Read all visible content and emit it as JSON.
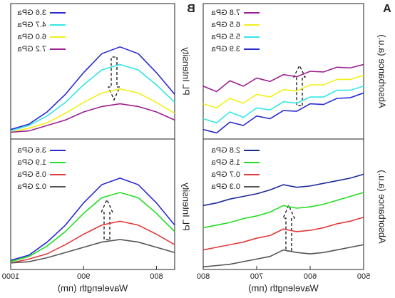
{
  "chart_data": [
    {
      "type": "line",
      "panel_label": "A",
      "ylabel": "Absorbance (a.u.)",
      "xlim": [
        500,
        800
      ],
      "ylim": [
        0,
        10
      ],
      "x": [
        500,
        525,
        550,
        575,
        600,
        625,
        650,
        675,
        700,
        725,
        750,
        775,
        800
      ],
      "series": [
        {
          "name": "7.8 GPa",
          "color": "#9b1f8f",
          "values": [
            5.5,
            5.25,
            5.3,
            4.95,
            5.0,
            4.6,
            4.75,
            4.25,
            4.5,
            3.9,
            4.3,
            3.5,
            3.9
          ]
        },
        {
          "name": "6.5 GPa",
          "color": "#f2ef1a",
          "values": [
            4.7,
            4.4,
            4.4,
            4.0,
            4.0,
            3.55,
            3.65,
            3.1,
            3.3,
            2.65,
            3.0,
            2.3,
            2.6
          ]
        },
        {
          "name": "5.5 GPa",
          "color": "#35e6e6",
          "values": [
            3.9,
            3.6,
            3.6,
            3.1,
            3.1,
            2.65,
            2.75,
            2.15,
            2.3,
            1.6,
            2.0,
            1.2,
            1.5
          ]
        },
        {
          "name": "3.9 GPa",
          "color": "#2a2ad0",
          "values": [
            3.4,
            3.05,
            3.0,
            2.55,
            2.6,
            2.05,
            2.1,
            1.5,
            1.7,
            1.0,
            1.25,
            0.45,
            0.7
          ]
        }
      ]
    },
    {
      "type": "line",
      "ylabel": "Absorbance (a.u.)",
      "xlabel": "Wavelength (nm)",
      "xlim": [
        500,
        800
      ],
      "ylim": [
        0,
        10
      ],
      "xticks": [
        500,
        600,
        700,
        800
      ],
      "x": [
        500,
        525,
        550,
        575,
        600,
        625,
        650,
        675,
        700,
        725,
        750,
        775,
        800
      ],
      "series": [
        {
          "name": "2.8 GPa",
          "color": "#1a2a9a",
          "values": [
            7.3,
            7.0,
            6.8,
            6.6,
            6.4,
            6.3,
            6.5,
            6.1,
            5.8,
            5.6,
            5.4,
            5.1,
            4.9
          ]
        },
        {
          "name": "1.5 GPa",
          "color": "#22dd22",
          "values": [
            5.9,
            5.6,
            5.3,
            5.0,
            4.8,
            4.7,
            4.9,
            4.4,
            4.1,
            3.9,
            3.6,
            3.4,
            3.2
          ]
        },
        {
          "name": "0.7 GPa",
          "color": "#e23a3a",
          "values": [
            4.0,
            3.7,
            3.5,
            3.2,
            3.0,
            2.9,
            3.1,
            2.6,
            2.4,
            2.1,
            1.9,
            1.7,
            1.5
          ]
        },
        {
          "name": "0.3 GPa",
          "color": "#555555",
          "values": [
            1.9,
            1.7,
            1.5,
            1.3,
            1.2,
            1.3,
            1.5,
            1.0,
            0.8,
            0.6,
            0.4,
            0.3,
            0.2
          ]
        }
      ]
    },
    {
      "type": "line",
      "panel_label": "B",
      "ylabel": "PL Intensity",
      "xlim": [
        775,
        1000
      ],
      "ylim": [
        0,
        10
      ],
      "x": [
        775,
        800,
        825,
        850,
        875,
        900,
        925,
        950,
        975,
        1000
      ],
      "series": [
        {
          "name": "3.6 GPa",
          "color": "#2a2ad0",
          "values": [
            3.3,
            4.9,
            6.3,
            6.8,
            6.3,
            4.9,
            3.3,
            2.0,
            1.1,
            0.7
          ]
        },
        {
          "name": "4.7 GPa",
          "color": "#35e6e6",
          "values": [
            2.7,
            4.0,
            5.1,
            5.5,
            5.1,
            4.0,
            2.7,
            1.7,
            1.0,
            0.6
          ]
        },
        {
          "name": "6.0 GPa",
          "color": "#f2ef1a",
          "values": [
            1.9,
            2.7,
            3.4,
            3.7,
            3.4,
            2.7,
            1.9,
            1.2,
            0.8,
            0.5
          ]
        },
        {
          "name": "7.2 GPa",
          "color": "#9b1f8f",
          "values": [
            1.4,
            2.0,
            2.4,
            2.6,
            2.4,
            2.0,
            1.4,
            1.0,
            0.6,
            0.5
          ]
        }
      ]
    },
    {
      "type": "line",
      "ylabel": "PL Intensity",
      "xlabel": "Wavelength (nm)",
      "xlim": [
        775,
        1000
      ],
      "ylim": [
        0,
        10
      ],
      "xticks": [
        800,
        900,
        1000
      ],
      "x": [
        775,
        800,
        825,
        850,
        875,
        900,
        925,
        950,
        975,
        1000
      ],
      "series": [
        {
          "name": "3.6 GPa",
          "color": "#2a2ad0",
          "values": [
            3.4,
            5.1,
            6.5,
            7.0,
            6.5,
            5.1,
            3.4,
            2.1,
            1.1,
            0.7
          ]
        },
        {
          "name": "1.9 GPa",
          "color": "#22dd22",
          "values": [
            2.9,
            4.3,
            5.5,
            5.9,
            5.5,
            4.3,
            2.9,
            1.8,
            1.0,
            0.6
          ]
        },
        {
          "name": "0.5 GPa",
          "color": "#e23a3a",
          "values": [
            1.9,
            2.7,
            3.4,
            3.7,
            3.4,
            2.7,
            1.9,
            1.2,
            0.8,
            0.5
          ]
        },
        {
          "name": "0.2 GPa",
          "color": "#555555",
          "values": [
            1.3,
            1.7,
            2.1,
            2.3,
            2.1,
            1.7,
            1.3,
            0.9,
            0.6,
            0.5
          ]
        }
      ]
    }
  ]
}
